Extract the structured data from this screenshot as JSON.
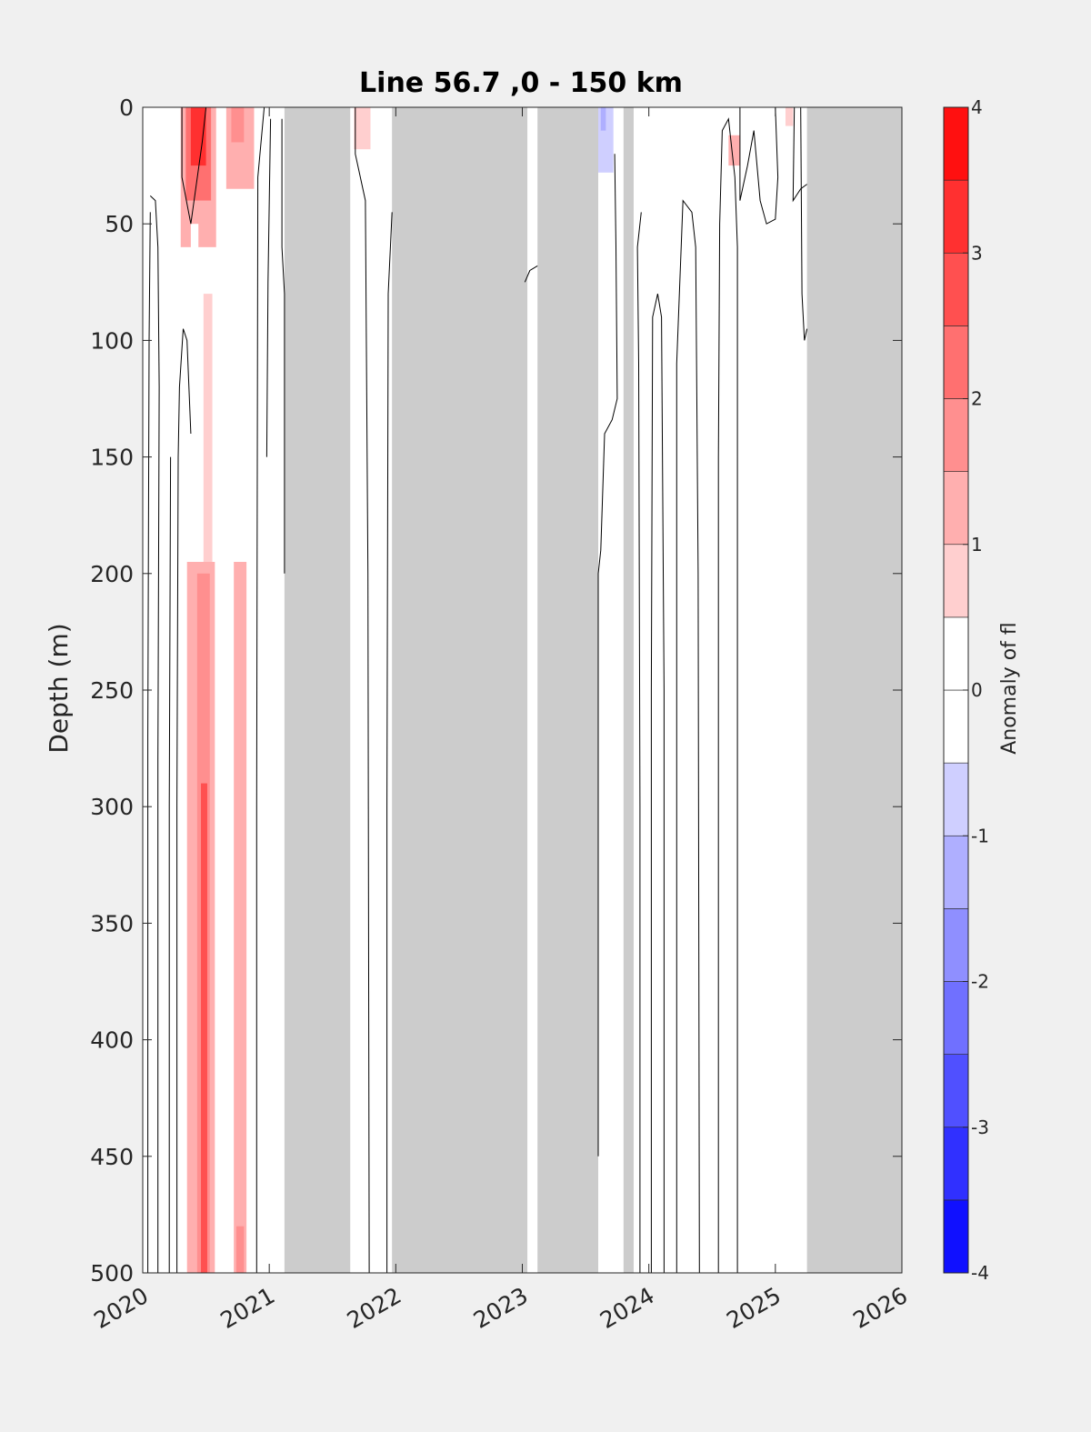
{
  "chart_data": {
    "type": "heatmap",
    "title": "Line 56.7 ,0 - 150 km",
    "xlabel": "",
    "ylabel": "Depth (m)",
    "xlim": [
      2020,
      2026
    ],
    "ylim": [
      0,
      500
    ],
    "y_reversed": true,
    "x_ticks": [
      "2020",
      "2021",
      "2022",
      "2023",
      "2024",
      "2025",
      "2026"
    ],
    "y_ticks": [
      "0",
      "50",
      "100",
      "150",
      "200",
      "250",
      "300",
      "350",
      "400",
      "450",
      "500"
    ],
    "colorbar": {
      "label": "Anomaly of fl",
      "range": [
        -4,
        4
      ],
      "step": 0.5,
      "ticks": [
        "4",
        "3",
        "2",
        "1",
        "0",
        "-1",
        "-2",
        "-3",
        "-4"
      ]
    },
    "no_data_color": "#cccccc",
    "no_data_periods": [
      [
        2021.12,
        2021.64
      ],
      [
        2021.97,
        2023.04
      ],
      [
        2023.12,
        2023.6
      ],
      [
        2023.8,
        2023.88
      ],
      [
        2025.25,
        2026.0
      ]
    ],
    "anomaly_patches": [
      {
        "x0": 2020.3,
        "x1": 2020.58,
        "y0": 0,
        "y1": 60,
        "value": 1.0
      },
      {
        "x0": 2020.34,
        "x1": 2020.54,
        "y0": 0,
        "y1": 40,
        "value": 2.0
      },
      {
        "x0": 2020.38,
        "x1": 2020.5,
        "y0": 0,
        "y1": 25,
        "value": 3.0
      },
      {
        "x0": 2020.66,
        "x1": 2020.88,
        "y0": 0,
        "y1": 35,
        "value": 1.0
      },
      {
        "x0": 2020.7,
        "x1": 2020.8,
        "y0": 0,
        "y1": 15,
        "value": 1.5
      },
      {
        "x0": 2020.38,
        "x1": 2020.44,
        "y0": 50,
        "y1": 75,
        "value": -0.5
      },
      {
        "x0": 2020.48,
        "x1": 2020.55,
        "y0": 80,
        "y1": 500,
        "value": 0.5
      },
      {
        "x0": 2020.35,
        "x1": 2020.57,
        "y0": 195,
        "y1": 500,
        "value": 1.0
      },
      {
        "x0": 2020.43,
        "x1": 2020.53,
        "y0": 200,
        "y1": 500,
        "value": 1.5
      },
      {
        "x0": 2020.46,
        "x1": 2020.51,
        "y0": 290,
        "y1": 500,
        "value": 2.5
      },
      {
        "x0": 2020.72,
        "x1": 2020.82,
        "y0": 195,
        "y1": 500,
        "value": 1.0
      },
      {
        "x0": 2020.74,
        "x1": 2020.8,
        "y0": 480,
        "y1": 500,
        "value": 1.5
      },
      {
        "x0": 2021.67,
        "x1": 2021.8,
        "y0": 0,
        "y1": 18,
        "value": 0.8
      },
      {
        "x0": 2023.06,
        "x1": 2023.08,
        "y0": 0,
        "y1": 15,
        "value": -0.5
      },
      {
        "x0": 2023.6,
        "x1": 2023.72,
        "y0": 0,
        "y1": 28,
        "value": -1.0
      },
      {
        "x0": 2023.62,
        "x1": 2023.66,
        "y0": 0,
        "y1": 10,
        "value": -1.5
      },
      {
        "x0": 2024.13,
        "x1": 2024.3,
        "y0": 0,
        "y1": 28,
        "value": -0.5
      },
      {
        "x0": 2024.34,
        "x1": 2024.44,
        "y0": 0,
        "y1": 12,
        "value": -0.5
      },
      {
        "x0": 2024.63,
        "x1": 2024.72,
        "y0": 12,
        "y1": 25,
        "value": 1.0
      },
      {
        "x0": 2025.08,
        "x1": 2025.14,
        "y0": 0,
        "y1": 8,
        "value": 0.8
      }
    ],
    "contour_lines": [
      [
        [
          2020.04,
          500
        ],
        [
          2020.04,
          270
        ],
        [
          2020.05,
          100
        ],
        [
          2020.06,
          45
        ]
      ],
      [
        [
          2020.12,
          500
        ],
        [
          2020.12,
          280
        ],
        [
          2020.13,
          120
        ],
        [
          2020.12,
          60
        ],
        [
          2020.1,
          40
        ],
        [
          2020.06,
          38
        ]
      ],
      [
        [
          2020.21,
          500
        ],
        [
          2020.21,
          300
        ],
        [
          2020.22,
          150
        ]
      ],
      [
        [
          2020.27,
          500
        ],
        [
          2020.27,
          300
        ],
        [
          2020.28,
          150
        ],
        [
          2020.29,
          120
        ],
        [
          2020.32,
          95
        ],
        [
          2020.35,
          100
        ],
        [
          2020.38,
          140
        ]
      ],
      [
        [
          2020.31,
          0
        ],
        [
          2020.31,
          30
        ],
        [
          2020.38,
          50
        ],
        [
          2020.47,
          15
        ],
        [
          2020.5,
          0
        ]
      ],
      [
        [
          2020.9,
          500
        ],
        [
          2020.9,
          300
        ],
        [
          2020.91,
          30
        ],
        [
          2020.96,
          0
        ]
      ],
      [
        [
          2020.98,
          150
        ],
        [
          2020.99,
          75
        ],
        [
          2021.01,
          5
        ]
      ],
      [
        [
          2021.12,
          200
        ],
        [
          2021.12,
          80
        ],
        [
          2021.1,
          60
        ],
        [
          2021.1,
          5
        ]
      ],
      [
        [
          2021.68,
          0
        ],
        [
          2021.68,
          20
        ],
        [
          2021.76,
          40
        ],
        [
          2021.78,
          200
        ],
        [
          2021.79,
          500
        ]
      ],
      [
        [
          2021.93,
          500
        ],
        [
          2021.93,
          300
        ],
        [
          2021.94,
          80
        ],
        [
          2021.97,
          45
        ]
      ],
      [
        [
          2023.02,
          75
        ],
        [
          2023.06,
          70
        ],
        [
          2023.12,
          68
        ]
      ],
      [
        [
          2023.6,
          450
        ],
        [
          2023.6,
          300
        ],
        [
          2023.6,
          200
        ],
        [
          2023.62,
          190
        ],
        [
          2023.65,
          140
        ],
        [
          2023.71,
          134
        ],
        [
          2023.75,
          125
        ],
        [
          2023.74,
          60
        ],
        [
          2023.73,
          20
        ]
      ],
      [
        [
          2023.93,
          500
        ],
        [
          2023.93,
          300
        ],
        [
          2023.92,
          110
        ],
        [
          2023.91,
          60
        ],
        [
          2023.94,
          45
        ]
      ],
      [
        [
          2024.02,
          500
        ],
        [
          2024.02,
          250
        ],
        [
          2024.03,
          90
        ],
        [
          2024.07,
          80
        ],
        [
          2024.1,
          90
        ],
        [
          2024.12,
          250
        ],
        [
          2024.12,
          500
        ]
      ],
      [
        [
          2024.22,
          500
        ],
        [
          2024.22,
          200
        ],
        [
          2024.22,
          110
        ],
        [
          2024.27,
          40
        ],
        [
          2024.34,
          45
        ],
        [
          2024.37,
          60
        ],
        [
          2024.39,
          200
        ],
        [
          2024.4,
          500
        ]
      ],
      [
        [
          2024.55,
          500
        ],
        [
          2024.55,
          150
        ],
        [
          2024.56,
          50
        ],
        [
          2024.58,
          10
        ],
        [
          2024.63,
          5
        ],
        [
          2024.68,
          30
        ],
        [
          2024.7,
          60
        ],
        [
          2024.7,
          500
        ]
      ],
      [
        [
          2024.72,
          0
        ],
        [
          2024.72,
          40
        ],
        [
          2024.78,
          25
        ],
        [
          2024.83,
          10
        ],
        [
          2024.88,
          40
        ],
        [
          2024.93,
          50
        ],
        [
          2025.0,
          48
        ],
        [
          2025.02,
          30
        ],
        [
          2025.0,
          0
        ]
      ],
      [
        [
          2025.15,
          0
        ],
        [
          2025.14,
          40
        ],
        [
          2025.2,
          35
        ],
        [
          2025.25,
          33
        ]
      ],
      [
        [
          2025.2,
          0
        ],
        [
          2025.21,
          80
        ],
        [
          2025.23,
          100
        ],
        [
          2025.25,
          95
        ]
      ]
    ]
  }
}
